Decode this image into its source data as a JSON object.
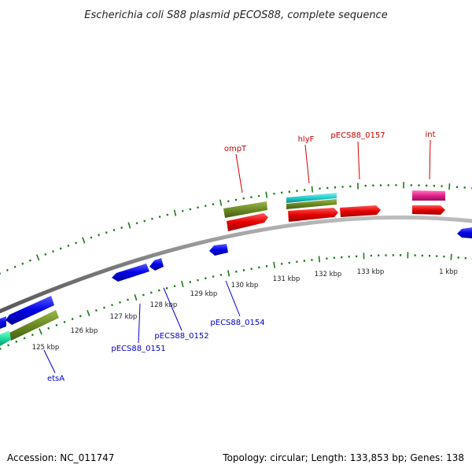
{
  "title": "Escherichia coli S88 plasmid pECOS88, complete sequence",
  "footer": {
    "accession": "Accession: NC_011747",
    "summary": "Topology: circular; Length: 133,853 bp; Genes: 138"
  },
  "scale_labels": [
    "125 kbp",
    "126 kbp",
    "127 kbp",
    "128 kbp",
    "129 kbp",
    "130 kbp",
    "131 kbp",
    "132 kbp",
    "133 kbp",
    "1 kbp"
  ],
  "gene_labels": {
    "outer": [
      "ompT",
      "hlyF",
      "pECS88_0157",
      "int"
    ],
    "inner": [
      "pECS88_0154",
      "pECS88_0152",
      "pECS88_0151",
      "etsA"
    ]
  },
  "colors": {
    "backbone": "#8a8a8a",
    "tick": "#1a7a1a",
    "forward_gene": "#e60000",
    "reverse_gene": "#0000e6",
    "rna": "#6b8a23",
    "cyan_feature": "#22cccc",
    "pink_feature": "#e6208c",
    "teal_feature": "#20e0a0",
    "outer_label": "#cc0000",
    "inner_label": "#0000cc"
  }
}
